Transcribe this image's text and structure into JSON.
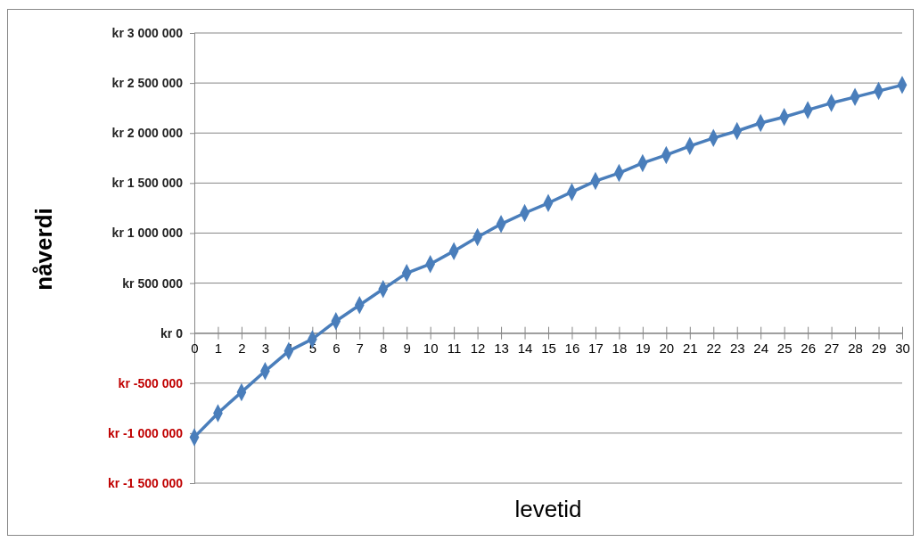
{
  "chart_data": {
    "type": "line",
    "xlabel": "levetid",
    "ylabel": "nåverdi",
    "x": [
      0,
      1,
      2,
      3,
      4,
      5,
      6,
      7,
      8,
      9,
      10,
      11,
      12,
      13,
      14,
      15,
      16,
      17,
      18,
      19,
      20,
      21,
      22,
      23,
      24,
      25,
      26,
      27,
      28,
      29,
      30
    ],
    "series": [
      {
        "color": "#4a7ebb",
        "values": [
          -1040000,
          -800000,
          -590000,
          -380000,
          -180000,
          -60000,
          120000,
          280000,
          440000,
          600000,
          690000,
          820000,
          960000,
          1090000,
          1200000,
          1300000,
          1410000,
          1520000,
          1600000,
          1700000,
          1780000,
          1870000,
          1950000,
          2020000,
          2100000,
          2160000,
          2230000,
          2300000,
          2360000,
          2420000,
          2480000
        ]
      }
    ],
    "xlim": [
      0,
      30
    ],
    "xticks": [
      0,
      1,
      2,
      3,
      4,
      5,
      6,
      7,
      8,
      9,
      10,
      11,
      12,
      13,
      14,
      15,
      16,
      17,
      18,
      19,
      20,
      21,
      22,
      23,
      24,
      25,
      26,
      27,
      28,
      29,
      30
    ],
    "ylim": [
      -1500000,
      3000000
    ],
    "yticks": [
      {
        "value": -1500000,
        "label": "kr -1 500 000"
      },
      {
        "value": -1000000,
        "label": "kr -1 000 000"
      },
      {
        "value": -500000,
        "label": "kr -500 000"
      },
      {
        "value": 0,
        "label": "kr 0"
      },
      {
        "value": 500000,
        "label": "kr 500 000"
      },
      {
        "value": 1000000,
        "label": "kr 1 000 000"
      },
      {
        "value": 1500000,
        "label": "kr 1 500 000"
      },
      {
        "value": 2000000,
        "label": "kr 2 000 000"
      },
      {
        "value": 2500000,
        "label": "kr 2 500 000"
      },
      {
        "value": 3000000,
        "label": "kr 3 000 000"
      }
    ],
    "grid": "y",
    "marker": "diamond",
    "line_style": "solid"
  }
}
